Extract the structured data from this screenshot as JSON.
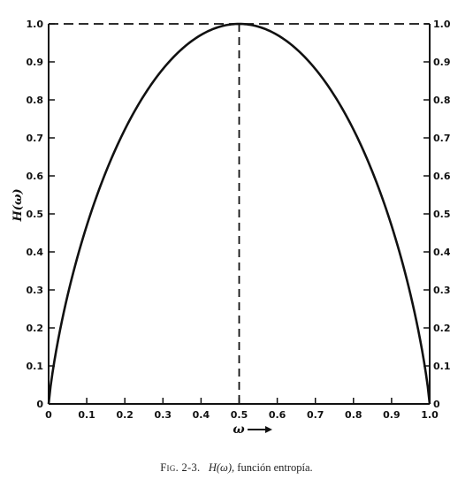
{
  "chart_data": {
    "type": "line",
    "title": "",
    "xlabel": "ω",
    "ylabel": "H(ω)",
    "xlim": [
      0,
      1.0
    ],
    "ylim": [
      0,
      1.0
    ],
    "x_ticks": [
      "0",
      "0.1",
      "0.2",
      "0.3",
      "0.4",
      "0.5",
      "0.6",
      "0.7",
      "0.8",
      "0.9",
      "1.0"
    ],
    "y_ticks": [
      "0",
      "0.1",
      "0.2",
      "0.3",
      "0.4",
      "0.5",
      "0.6",
      "0.7",
      "0.8",
      "0.9",
      "1.0"
    ],
    "x_tick_values": [
      0,
      0.1,
      0.2,
      0.3,
      0.4,
      0.5,
      0.6,
      0.7,
      0.8,
      0.9,
      1.0
    ],
    "y_tick_values": [
      0,
      0.1,
      0.2,
      0.3,
      0.4,
      0.5,
      0.6,
      0.7,
      0.8,
      0.9,
      1.0
    ],
    "series": [
      {
        "x": [
          0,
          0.01,
          0.02,
          0.05,
          0.1,
          0.15,
          0.2,
          0.25,
          0.3,
          0.35,
          0.4,
          0.45,
          0.5,
          0.55,
          0.6,
          0.65,
          0.7,
          0.75,
          0.8,
          0.85,
          0.9,
          0.95,
          0.98,
          0.99,
          1.0
        ],
        "y": [
          0,
          0.081,
          0.141,
          0.286,
          0.469,
          0.61,
          0.722,
          0.811,
          0.881,
          0.934,
          0.971,
          0.993,
          1.0,
          0.993,
          0.971,
          0.934,
          0.881,
          0.811,
          0.722,
          0.61,
          0.469,
          0.286,
          0.141,
          0.081,
          0
        ]
      }
    ],
    "reference_lines": [
      {
        "orientation": "vertical",
        "x": 0.5,
        "style": "dashed"
      },
      {
        "orientation": "horizontal",
        "y": 1.0,
        "style": "dashed"
      }
    ],
    "grid": false,
    "legend": "none",
    "mirrored_right_axis": true
  },
  "caption": {
    "fig_label": "Fig. 2-3.",
    "symbol": "H(ω),",
    "text": "función entropía."
  }
}
